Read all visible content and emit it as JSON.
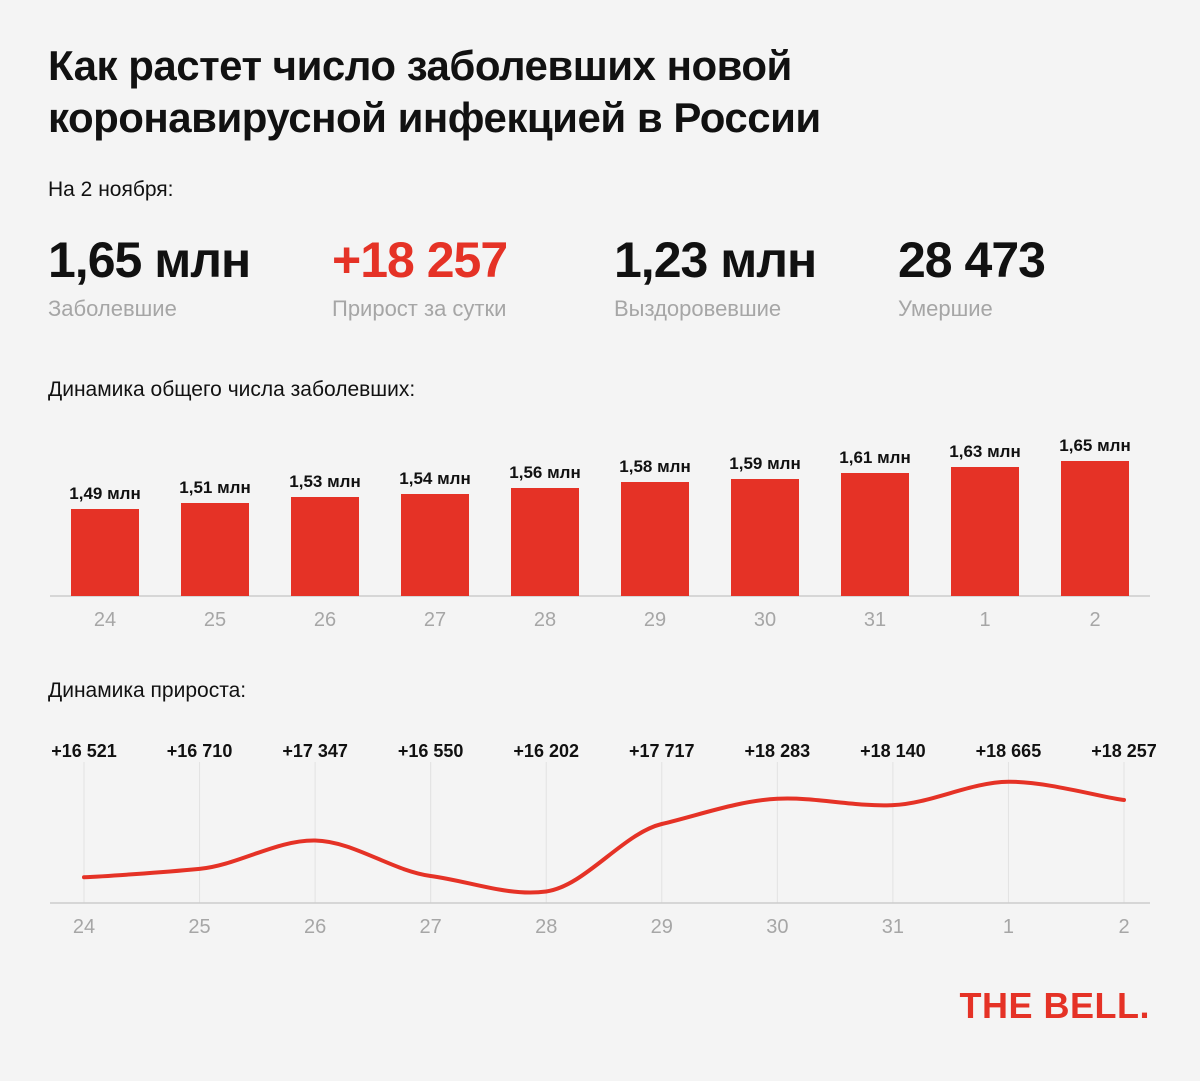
{
  "title": "Как растет число заболевших новой коронавирусной инфекцией в России",
  "as_of": "На 2 ноября:",
  "stats": [
    {
      "value": "1,65 млн",
      "label": "Заболевшие",
      "color": "#111111"
    },
    {
      "value": "+18 257",
      "label": "Прирост за сутки",
      "color": "#e53226"
    },
    {
      "value": "1,23 млн",
      "label": "Выздоровевшие",
      "color": "#111111"
    },
    {
      "value": "28 473",
      "label": "Умершие",
      "color": "#111111"
    }
  ],
  "sections": {
    "total_label": "Динамика общего числа заболевших:",
    "growth_label": "Динамика прироста:"
  },
  "logo": "THE BELL.",
  "colors": {
    "accent": "#e53226",
    "axis": "#cccccc",
    "tick": "#a6a6a6"
  },
  "chart_data": [
    {
      "type": "bar",
      "categories": [
        "24",
        "25",
        "26",
        "27",
        "28",
        "29",
        "30",
        "31",
        "1",
        "2"
      ],
      "values": [
        1.49,
        1.51,
        1.53,
        1.54,
        1.56,
        1.58,
        1.59,
        1.61,
        1.63,
        1.65
      ],
      "labels": [
        "1,49 млн",
        "1,51 млн",
        "1,53 млн",
        "1,54 млн",
        "1,56 млн",
        "1,58 млн",
        "1,59 млн",
        "1,61 млн",
        "1,63 млн",
        "1,65 млн"
      ],
      "unit": "млн"
    },
    {
      "type": "line",
      "categories": [
        "24",
        "25",
        "26",
        "27",
        "28",
        "29",
        "30",
        "31",
        "1",
        "2"
      ],
      "values": [
        16521,
        16710,
        17347,
        16550,
        16202,
        17717,
        18283,
        18140,
        18665,
        18257
      ],
      "labels": [
        "+16 521",
        "+16 710",
        "+17 347",
        "+16 550",
        "+16 202",
        "+17 717",
        "+18 283",
        "+18 140",
        "+18 665",
        "+18 257"
      ],
      "grid": true
    }
  ]
}
